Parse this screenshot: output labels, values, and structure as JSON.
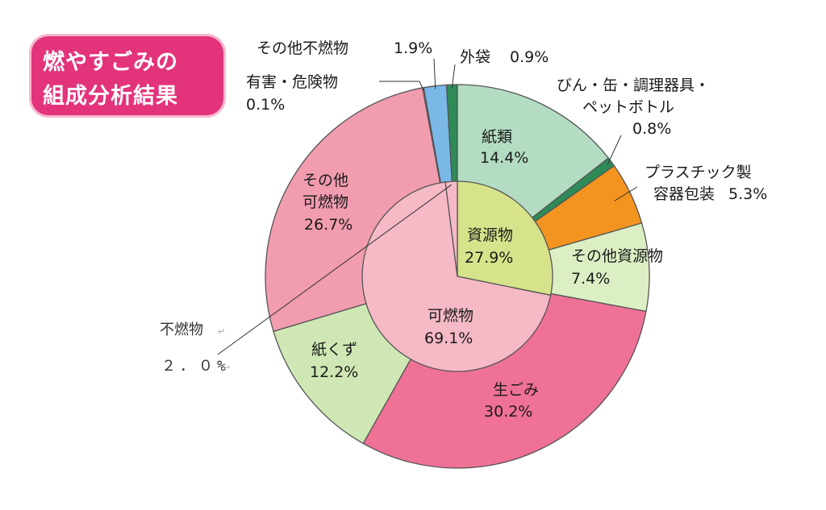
{
  "title": {
    "line1": "燃やすごみの",
    "line2": "組成分析結果"
  },
  "colors": {
    "title_badge": "#e3337b",
    "recyclable_inner": "#d6e38a",
    "combustible_inner": "#f6b9c6",
    "paper": "#b4dcc3",
    "green_bottles": "#2e8b57",
    "plastic": "#f39421",
    "other_resources": "#dcefc4",
    "food_waste": "#ef7196",
    "paper_scraps": "#cfe7b4",
    "other_combustible": "#f29cb0",
    "hazardous": "#ffffff",
    "other_noncombustible": "#7ab8e8",
    "outer_bags": "#2e8b57"
  },
  "chart_data": {
    "type": "pie",
    "subtype": "nested-donut",
    "inner": [
      {
        "label": "資源物",
        "value": 27.9,
        "display": "27.9%"
      },
      {
        "label": "可燃物",
        "value": 69.1,
        "display": "69.1%"
      },
      {
        "label": "不燃物",
        "value": 2.0,
        "display": "２．０%"
      }
    ],
    "outer": [
      {
        "label": "紙類",
        "value": 14.4,
        "display": "14.4%"
      },
      {
        "label": "びん・缶・調理器具・ペットボトル",
        "value": 0.8,
        "display": "0.8%"
      },
      {
        "label": "プラスチック製容器包装",
        "value": 5.3,
        "display": "5.3%"
      },
      {
        "label": "その他資源物",
        "value": 7.4,
        "display": "7.4%"
      },
      {
        "label": "生ごみ",
        "value": 30.2,
        "display": "30.2%"
      },
      {
        "label": "紙くず",
        "value": 12.2,
        "display": "12.2%"
      },
      {
        "label": "その他可燃物",
        "value": 26.7,
        "display": "26.7%"
      },
      {
        "label": "有害・危険物",
        "value": 0.1,
        "display": "0.1%"
      },
      {
        "label": "その他不燃物",
        "value": 1.9,
        "display": "1.9%"
      },
      {
        "label": "外袋",
        "value": 0.9,
        "display": "0.9%"
      }
    ],
    "labels": {
      "paper": {
        "name": "紙類",
        "pct": "14.4%"
      },
      "bottles": {
        "name1": "びん・缶・調理器具・",
        "name2": "ペットボトル",
        "pct": "0.8%"
      },
      "plastic": {
        "name1": "プラスチック製",
        "name2": "容器包装",
        "pct": "5.3%"
      },
      "other_resources": {
        "name": "その他資源物",
        "pct": "7.4%"
      },
      "food_waste": {
        "name": "生ごみ",
        "pct": "30.2%"
      },
      "paper_scraps": {
        "name": "紙くず",
        "pct": "12.2%"
      },
      "other_combustible": {
        "name1": "その他",
        "name2": "可燃物",
        "pct": "26.7%"
      },
      "hazardous": {
        "name": "有害・危険物",
        "pct": "0.1%"
      },
      "other_noncombustible": {
        "name": "その他不燃物",
        "pct": "1.9%"
      },
      "outer_bags": {
        "name": "外袋",
        "pct": "0.9%"
      },
      "recyclable": {
        "name": "資源物",
        "pct": "27.9%"
      },
      "combustible": {
        "name": "可燃物",
        "pct": "69.1%"
      },
      "noncombustible": {
        "name": "不燃物",
        "pct": "２．０%"
      }
    },
    "edit_mark": "↵"
  }
}
